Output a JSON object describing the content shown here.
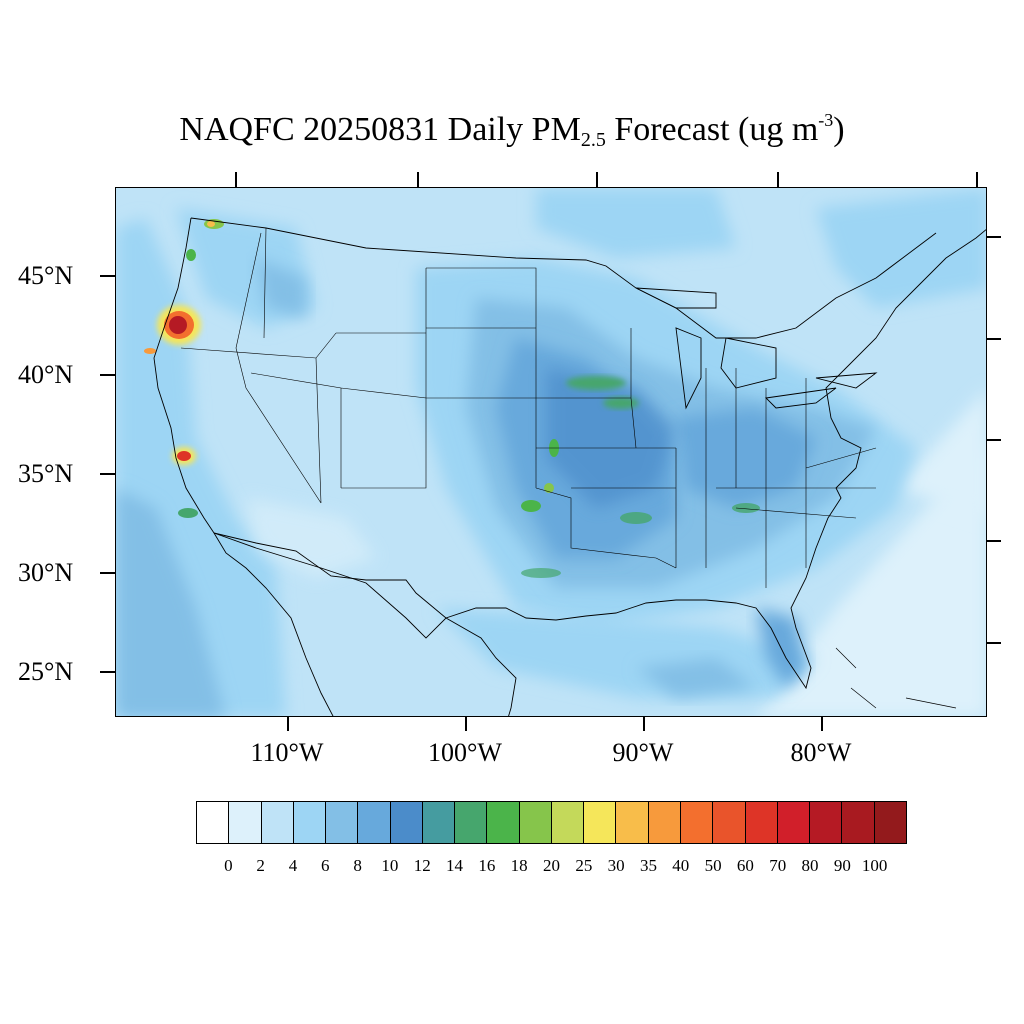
{
  "title": {
    "prefix": "NAQFC 20250831 Daily PM",
    "subscript": "2.5",
    "middle": " Forecast (ug m",
    "superscript": "-3",
    "suffix": ")"
  },
  "map": {
    "region": "Contiguous United States",
    "variable": "Daily PM2.5",
    "units": "ug m-3",
    "background_color": "#bfe3f7",
    "outline_color": "#000000",
    "lat_labels": [
      "45°N",
      "40°N",
      "35°N",
      "30°N",
      "25°N"
    ],
    "lon_labels": [
      "110°W",
      "100°W",
      "90°W",
      "80°W"
    ],
    "hotspots": [
      {
        "location": "Southern Oregon",
        "level": "60-100"
      },
      {
        "location": "Northern California coast",
        "level": "40-60"
      },
      {
        "location": "Central California (Sierra)",
        "level": "50-80"
      },
      {
        "location": "Washington Cascades",
        "level": "25-40"
      },
      {
        "location": "Southern California",
        "level": "14-18"
      },
      {
        "location": "Missouri / Iowa",
        "level": "14-18"
      },
      {
        "location": "Oklahoma",
        "level": "16-20"
      }
    ]
  },
  "colorbar": {
    "levels": [
      "0",
      "2",
      "4",
      "6",
      "8",
      "10",
      "12",
      "14",
      "16",
      "18",
      "20",
      "25",
      "30",
      "35",
      "40",
      "50",
      "60",
      "70",
      "80",
      "90",
      "100"
    ],
    "colors": [
      "#ffffff",
      "#ddf1fb",
      "#bfe3f7",
      "#9dd5f4",
      "#83bfe6",
      "#67a9dc",
      "#4b8cca",
      "#459ca0",
      "#46a66d",
      "#4bb44a",
      "#86c54b",
      "#c4d95a",
      "#f5e65a",
      "#f8bd4a",
      "#f79a3c",
      "#f36f2e",
      "#e9542b",
      "#de3427",
      "#d11f2a",
      "#b51a24",
      "#a81a20",
      "#931a1c"
    ]
  }
}
